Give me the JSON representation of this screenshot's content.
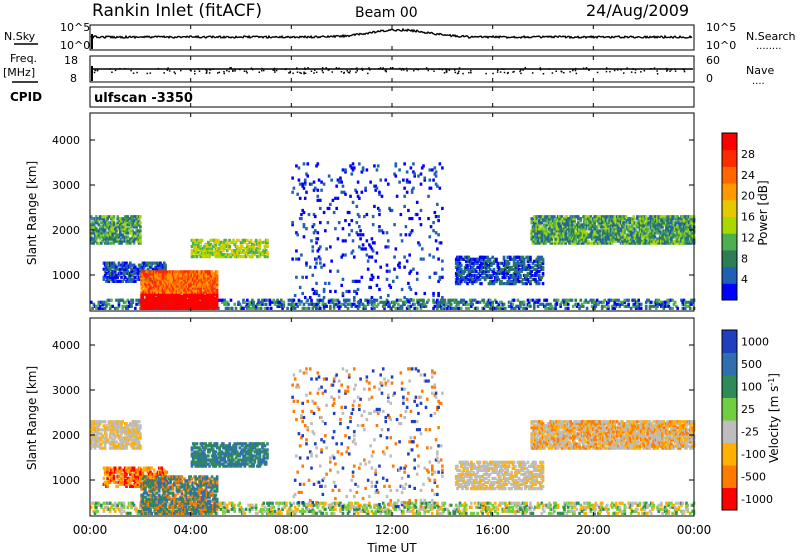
{
  "header": {
    "station": "Rankin Inlet (fitACF)",
    "beam": "Beam 00",
    "date": "24/Aug/2009"
  },
  "side_labels": {
    "nsky": "N.Sky",
    "nsearch": "N.Search",
    "nsearch_dots": "........",
    "freq": "Freq.",
    "freq_unit": "[MHz]",
    "nave": "Nave",
    "nave_dots": "....",
    "cpid": "CPID",
    "cpid_value": "ulfscan -3350"
  },
  "noise_panel": {
    "left_ticks": [
      "10^5",
      "10^0"
    ],
    "right_ticks": [
      "10^5",
      "10^0"
    ]
  },
  "freq_panel": {
    "left_ticks": [
      "18",
      "8"
    ],
    "right_ticks": [
      "60",
      "0"
    ]
  },
  "chart_data": [
    {
      "type": "heatmap",
      "name": "power",
      "ylabel": "Slant Range [km]",
      "y_ticks": [
        "1000",
        "2000",
        "3000",
        "4000"
      ],
      "colorbar_label": "Power [dB]",
      "colorbar_ticks": [
        "4",
        "8",
        "12",
        "16",
        "20",
        "24",
        "28"
      ],
      "colorbar_colors": [
        "#0000ff",
        "#1f5fb4",
        "#2e7d55",
        "#4caf50",
        "#a8d800",
        "#e6c800",
        "#ff9900",
        "#ff6600",
        "#ff2a00",
        "#ff0000"
      ]
    },
    {
      "type": "heatmap",
      "name": "velocity",
      "ylabel": "Slant Range [km]",
      "y_ticks": [
        "1000",
        "2000",
        "3000",
        "4000"
      ],
      "colorbar_label": "Velocity [m s^-1]",
      "colorbar_ticks": [
        "1000",
        "500",
        "100",
        "25",
        "-25",
        "-100",
        "-500",
        "-1000"
      ],
      "colorbar_colors": [
        "#1f3fbf",
        "#2f6fb0",
        "#2e8b57",
        "#6fcf3f",
        "#bdbdbd",
        "#ffb000",
        "#ff7a00",
        "#ff0000"
      ]
    }
  ],
  "x_axis": {
    "ticks": [
      "00:00",
      "04:00",
      "08:00",
      "12:00",
      "16:00",
      "20:00",
      "00:00"
    ],
    "label": "Time UT"
  }
}
